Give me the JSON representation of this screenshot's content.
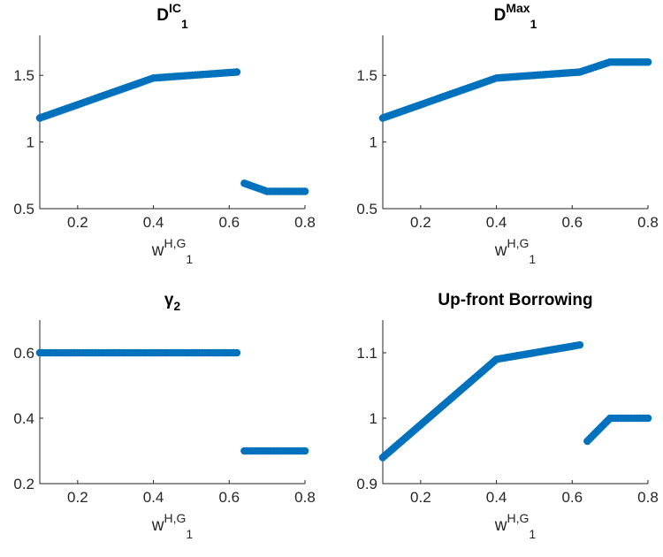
{
  "colors": {
    "marker": "#0072BD",
    "axis": "#262626"
  },
  "chart_data": [
    {
      "type": "scatter",
      "title": {
        "base": "D",
        "sub": "1",
        "sup": "IC"
      },
      "xlabel": {
        "base": "w",
        "sub": "1",
        "sup": "H,G"
      },
      "ylabel": "",
      "xlim": [
        0.1,
        0.8
      ],
      "ylim": [
        0.5,
        1.8
      ],
      "xticks": [
        "0.2",
        "0.4",
        "0.6",
        "0.8"
      ],
      "yticks": [
        "0.5",
        "1",
        "1.5"
      ],
      "grid": false,
      "series": [
        {
          "x": [
            0.1,
            0.4,
            0.62
          ],
          "y": [
            1.18,
            1.48,
            1.525
          ]
        },
        {
          "x": [
            0.64,
            0.7,
            0.8
          ],
          "y": [
            0.69,
            0.63,
            0.63
          ]
        }
      ]
    },
    {
      "type": "scatter",
      "title": {
        "base": "D",
        "sub": "1",
        "sup": "Max"
      },
      "xlabel": {
        "base": "w",
        "sub": "1",
        "sup": "H,G"
      },
      "ylabel": "",
      "xlim": [
        0.1,
        0.8
      ],
      "ylim": [
        0.5,
        1.8
      ],
      "xticks": [
        "0.2",
        "0.4",
        "0.6",
        "0.8"
      ],
      "yticks": [
        "0.5",
        "1",
        "1.5"
      ],
      "grid": false,
      "series": [
        {
          "x": [
            0.1,
            0.4,
            0.62,
            0.7,
            0.8
          ],
          "y": [
            1.18,
            1.48,
            1.525,
            1.6,
            1.6
          ]
        }
      ]
    },
    {
      "type": "scatter",
      "title": {
        "base": "γ",
        "sub": "2",
        "sup": ""
      },
      "xlabel": {
        "base": "w",
        "sub": "1",
        "sup": "H,G"
      },
      "ylabel": "",
      "xlim": [
        0.1,
        0.8
      ],
      "ylim": [
        0.2,
        0.7
      ],
      "xticks": [
        "0.2",
        "0.4",
        "0.6",
        "0.8"
      ],
      "yticks": [
        "0.2",
        "0.4",
        "0.6"
      ],
      "grid": false,
      "series": [
        {
          "x": [
            0.1,
            0.62
          ],
          "y": [
            0.6,
            0.6
          ]
        },
        {
          "x": [
            0.64,
            0.8
          ],
          "y": [
            0.3,
            0.3
          ]
        }
      ]
    },
    {
      "type": "scatter",
      "title": {
        "base": "Up-front Borrowing",
        "sub": "",
        "sup": ""
      },
      "xlabel": {
        "base": "w",
        "sub": "1",
        "sup": "H,G"
      },
      "ylabel": "",
      "xlim": [
        0.1,
        0.8
      ],
      "ylim": [
        0.9,
        1.15
      ],
      "xticks": [
        "0.2",
        "0.4",
        "0.6",
        "0.8"
      ],
      "yticks": [
        "0.9",
        "1",
        "1.1"
      ],
      "grid": false,
      "series": [
        {
          "x": [
            0.1,
            0.4,
            0.62
          ],
          "y": [
            0.94,
            1.09,
            1.112
          ]
        },
        {
          "x": [
            0.64,
            0.7,
            0.8
          ],
          "y": [
            0.965,
            1.0,
            1.0
          ]
        }
      ]
    }
  ]
}
